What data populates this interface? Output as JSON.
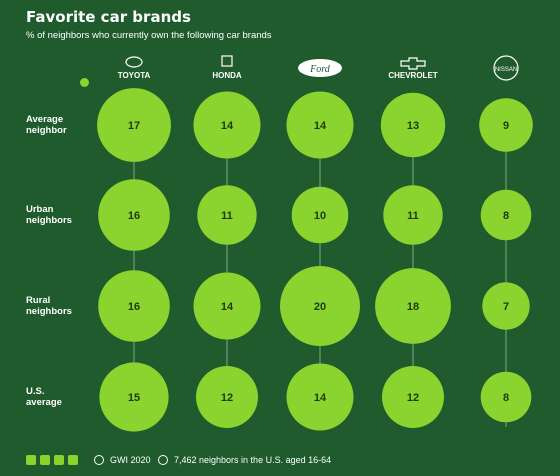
{
  "header": {
    "title": "Favorite car brands",
    "subtitle": "% of neighbors who currently own the following car brands"
  },
  "chart_data": {
    "type": "bubble-grid",
    "title": "Favorite car brands",
    "subtitle": "% of neighbors who currently own the following car brands",
    "brands": [
      "TOYOTA",
      "HONDA",
      "Ford",
      "CHEVROLET",
      "NISSAN"
    ],
    "rows": [
      "Average neighbor",
      "Urban neighbors",
      "Rural neighbors",
      "U.S. average"
    ],
    "values": [
      [
        17,
        14,
        14,
        13,
        9
      ],
      [
        16,
        11,
        10,
        11,
        8
      ],
      [
        16,
        14,
        20,
        18,
        7
      ],
      [
        15,
        12,
        14,
        12,
        8
      ]
    ],
    "bubble_color": "#8bd32e",
    "background_color": "#1f5b2c",
    "label_color": "#1f3b12"
  },
  "footer": {
    "source": "GWI 2020",
    "sample": "7,462 neighbors in the U.S. aged 16-64"
  }
}
